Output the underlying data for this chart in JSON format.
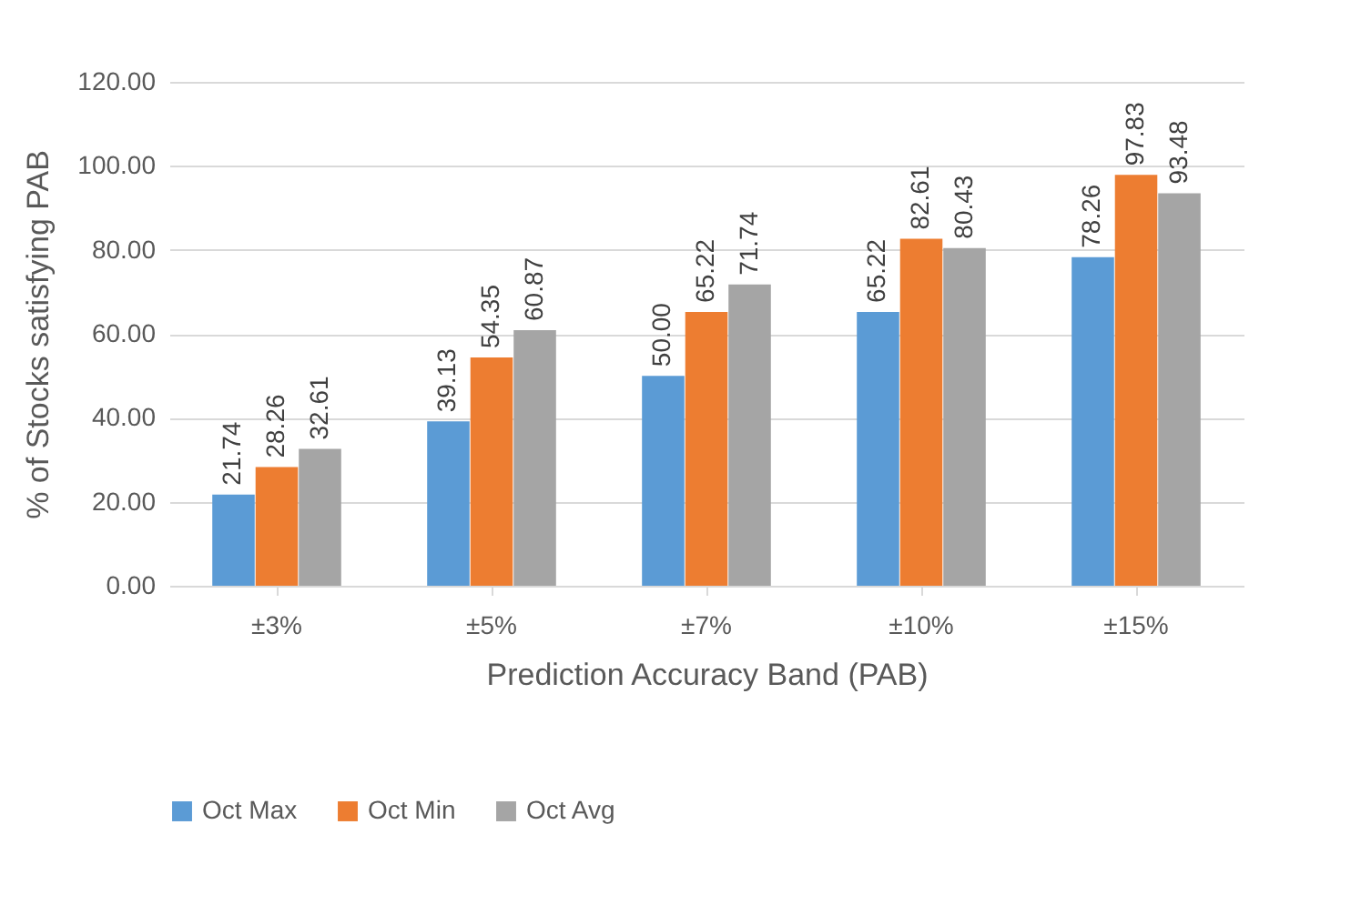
{
  "chart_data": {
    "type": "bar",
    "xlabel": "Prediction Accuracy Band (PAB)",
    "ylabel": "% of Stocks satisfying PAB",
    "categories": [
      "±3%",
      "±5%",
      "±7%",
      "±10%",
      "±15%"
    ],
    "series": [
      {
        "name": "Oct Max",
        "color": "#5b9bd5",
        "values": [
          21.74,
          39.13,
          50.0,
          65.22,
          78.26
        ],
        "value_labels": [
          "21.74",
          "39.13",
          "50.00",
          "65.22",
          "78.26"
        ]
      },
      {
        "name": "Oct Min",
        "color": "#ed7d31",
        "values": [
          28.26,
          54.35,
          65.22,
          82.61,
          97.83
        ],
        "value_labels": [
          "28.26",
          "54.35",
          "65.22",
          "82.61",
          "97.83"
        ]
      },
      {
        "name": "Oct Avg",
        "color": "#a5a5a5",
        "values": [
          32.61,
          60.87,
          71.74,
          80.43,
          93.48
        ],
        "value_labels": [
          "32.61",
          "60.87",
          "71.74",
          "80.43",
          "93.48"
        ]
      }
    ],
    "ylim": [
      0,
      120
    ],
    "yticks": [
      {
        "value": 0,
        "label": "0.00"
      },
      {
        "value": 20,
        "label": "20.00"
      },
      {
        "value": 40,
        "label": "40.00"
      },
      {
        "value": 60,
        "label": "60.00"
      },
      {
        "value": 80,
        "label": "80.00"
      },
      {
        "value": 100,
        "label": "100.00"
      },
      {
        "value": 120,
        "label": "120.00"
      }
    ],
    "grid": "y",
    "legend": "bottom"
  }
}
